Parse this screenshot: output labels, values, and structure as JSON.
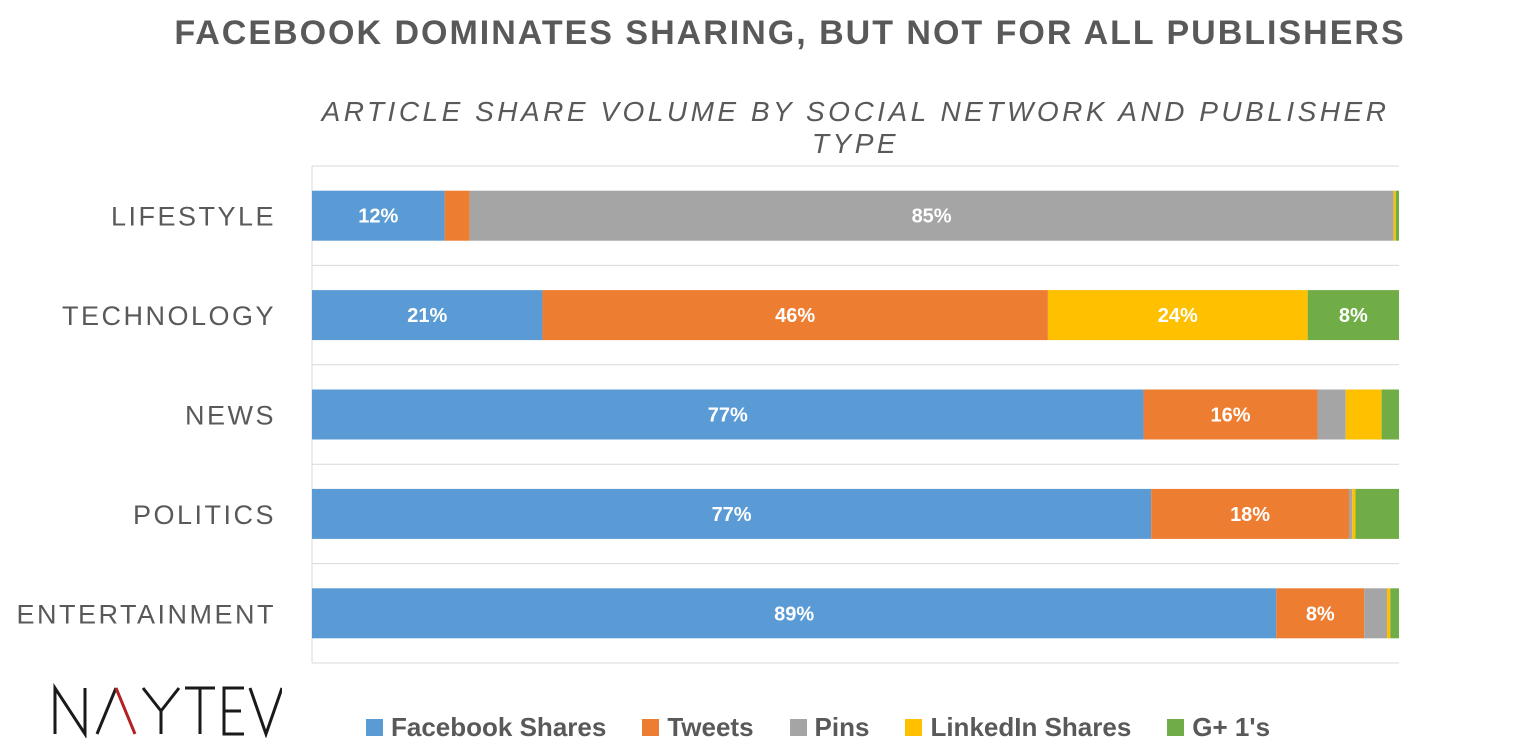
{
  "title": "FACEBOOK DOMINATES SHARING, BUT NOT FOR ALL PUBLISHERS",
  "subtitle": "ARTICLE SHARE VOLUME BY SOCIAL NETWORK AND PUBLISHER TYPE",
  "logo_text": "NAYTEV",
  "chart_data": {
    "type": "bar",
    "orientation": "horizontal",
    "stacked": true,
    "percent_stacked": true,
    "title": "FACEBOOK DOMINATES SHARING, BUT NOT FOR ALL PUBLISHERS",
    "subtitle": "ARTICLE SHARE VOLUME BY SOCIAL NETWORK AND PUBLISHER TYPE",
    "categories": [
      "LIFESTYLE",
      "TECHNOLOGY",
      "NEWS",
      "POLITICS",
      "ENTERTAINMENT"
    ],
    "series": [
      {
        "name": "Facebook Shares",
        "color": "#5B9BD5",
        "values": [
          12.2,
          21.2,
          76.5,
          77.2,
          88.8
        ]
      },
      {
        "name": "Tweets",
        "color": "#ED7D31",
        "values": [
          2.3,
          46.5,
          16.0,
          18.2,
          8.1
        ]
      },
      {
        "name": "Pins",
        "color": "#A5A5A5",
        "values": [
          85.0,
          0,
          2.6,
          0.3,
          2.1
        ]
      },
      {
        "name": "LinkedIn Shares",
        "color": "#FFC000",
        "values": [
          0.2,
          23.9,
          3.3,
          0.3,
          0.3
        ]
      },
      {
        "name": "G+ 1's",
        "color": "#70AD47",
        "values": [
          0.3,
          8.4,
          1.6,
          4.0,
          0.8
        ]
      }
    ],
    "data_labels": [
      [
        "12%",
        "",
        "85%",
        "",
        ""
      ],
      [
        "21%",
        "46%",
        "",
        "24%",
        "8%"
      ],
      [
        "77%",
        "16%",
        "",
        "",
        ""
      ],
      [
        "77%",
        "18%",
        "",
        "",
        ""
      ],
      [
        "89%",
        "8%",
        "",
        "",
        ""
      ]
    ],
    "xlim": [
      0,
      100
    ],
    "grid": true,
    "legend_position": "bottom"
  }
}
